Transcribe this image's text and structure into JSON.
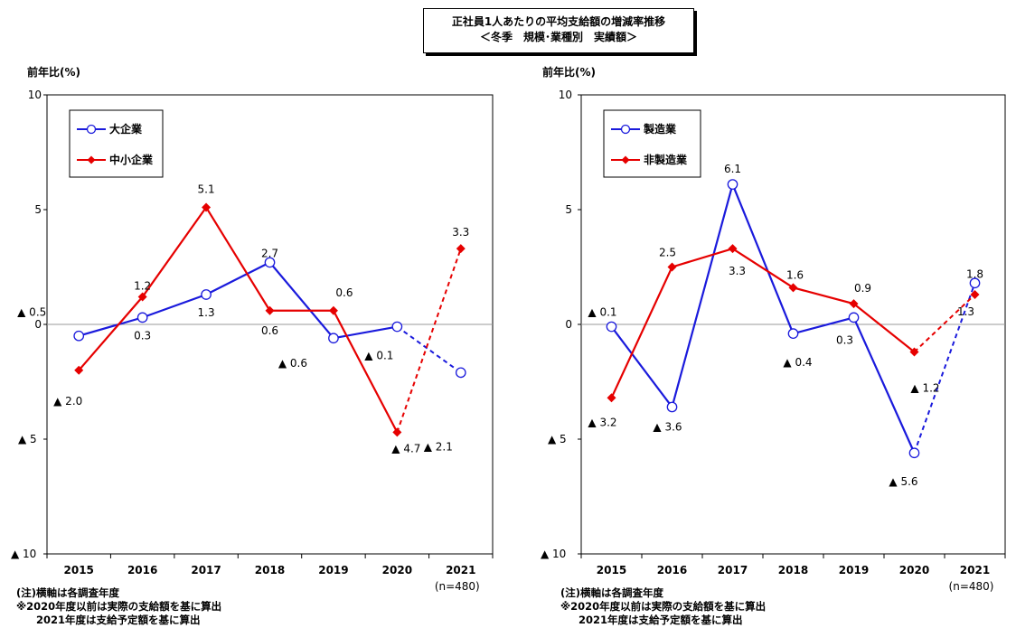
{
  "page_title": {
    "line1": "正社員1人あたりの平均支給額の増減率推移",
    "line2": "＜冬季　規模･業種別　実績額＞"
  },
  "notes": {
    "line1": "(注)横軸は各調査年度",
    "line2": "※2020年度以前は実際の支給額を基に算出",
    "line3": "2021年度は支給予定額を基に算出"
  },
  "colors": {
    "series_a": "#1a1adc",
    "series_b": "#e60000",
    "zero_line": "#999999"
  },
  "chart_data": [
    {
      "type": "line",
      "ylabel": "前年比(%)",
      "ylim": [
        -10,
        10
      ],
      "yticks": [
        10,
        5,
        0,
        -5,
        -10
      ],
      "ytick_labels": [
        "10",
        "5",
        "0",
        "▲ 5",
        "▲ 10"
      ],
      "categories": [
        "2015",
        "2016",
        "2017",
        "2018",
        "2019",
        "2020",
        "2021"
      ],
      "sample_note": "(n=480)",
      "legend_position": "top-left",
      "forecast_from_index": 5,
      "series": [
        {
          "name": "大企業",
          "marker": "circle-open",
          "color": "#1a1adc",
          "values": [
            -0.5,
            0.3,
            1.3,
            2.7,
            -0.6,
            -0.1,
            -2.1
          ],
          "labels": [
            "▲ 0.5",
            "0.3",
            "1.3",
            "2.7",
            "▲ 0.6",
            "▲ 0.1",
            "▲ 2.1"
          ]
        },
        {
          "name": "中小企業",
          "marker": "diamond-filled",
          "color": "#e60000",
          "values": [
            -2.0,
            1.2,
            5.1,
            0.6,
            0.6,
            -4.7,
            3.3
          ],
          "labels": [
            "▲ 2.0",
            "1.2",
            "5.1",
            "0.6",
            "0.6",
            "▲ 4.7",
            "3.3"
          ]
        }
      ]
    },
    {
      "type": "line",
      "ylabel": "前年比(%)",
      "ylim": [
        -10,
        10
      ],
      "yticks": [
        10,
        5,
        0,
        -5,
        -10
      ],
      "ytick_labels": [
        "10",
        "5",
        "0",
        "▲ 5",
        "▲ 10"
      ],
      "categories": [
        "2015",
        "2016",
        "2017",
        "2018",
        "2019",
        "2020",
        "2021"
      ],
      "sample_note": "(n=480)",
      "legend_position": "top-left",
      "forecast_from_index": 5,
      "series": [
        {
          "name": "製造業",
          "marker": "circle-open",
          "color": "#1a1adc",
          "values": [
            -0.1,
            -3.6,
            6.1,
            -0.4,
            0.3,
            -5.6,
            1.8
          ],
          "labels": [
            "▲ 0.1",
            "▲ 3.6",
            "6.1",
            "▲ 0.4",
            "0.3",
            "▲ 5.6",
            "1.8"
          ]
        },
        {
          "name": "非製造業",
          "marker": "diamond-filled",
          "color": "#e60000",
          "values": [
            -3.2,
            2.5,
            3.3,
            1.6,
            0.9,
            -1.2,
            1.3
          ],
          "labels": [
            "▲ 3.2",
            "2.5",
            "3.3",
            "1.6",
            "0.9",
            "▲ 1.2",
            "1.3"
          ]
        }
      ]
    }
  ]
}
